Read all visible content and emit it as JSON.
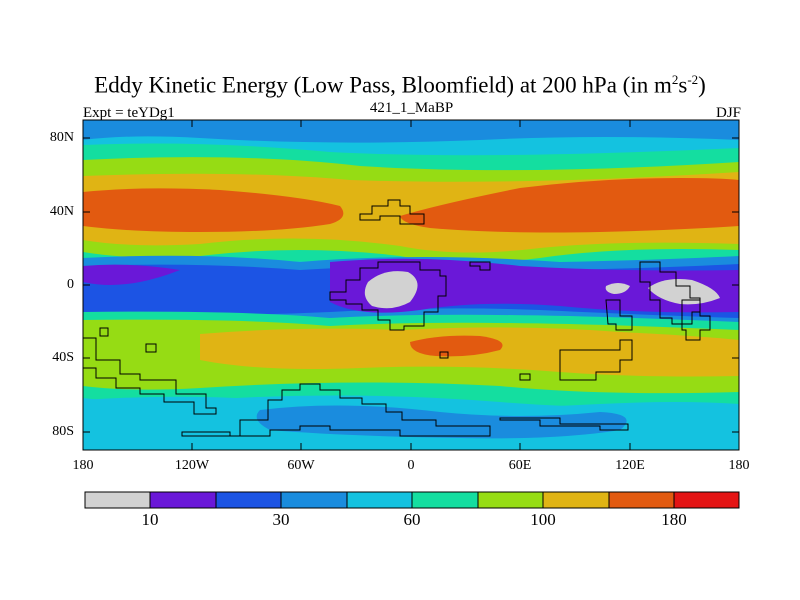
{
  "title": {
    "main": "Eddy Kinetic Energy (Low Pass, Bloomfield) at 200 hPa (in m",
    "exp1": "2",
    "mid": "s",
    "exp2": "-2",
    "close": ")"
  },
  "subtitle_left": "Expt = teYDg1",
  "subtitle_center": "421_1_MaBP",
  "subtitle_right": "DJF",
  "y_tick_labels": [
    "80N",
    "40N",
    "0",
    "40S",
    "80S"
  ],
  "x_tick_labels": [
    "180",
    "120W",
    "60W",
    "0",
    "60E",
    "120E",
    "180"
  ],
  "colorbar": {
    "colors": [
      "#d2d2d2",
      "#6a18d8",
      "#1c54e4",
      "#1a8cde",
      "#14c2e0",
      "#14dea0",
      "#96dc14",
      "#e0b414",
      "#e25a10",
      "#e41414"
    ],
    "labels": [
      "10",
      "30",
      "60",
      "100",
      "180"
    ]
  }
}
